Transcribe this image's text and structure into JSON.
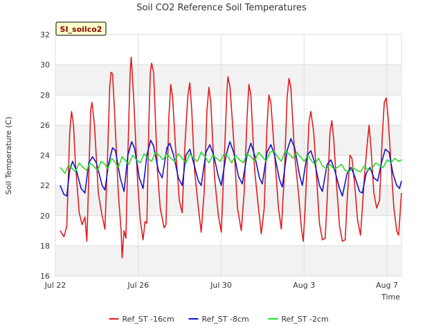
{
  "chart_data": {
    "type": "line",
    "title": "Soil CO2 Reference Soil Temperatures",
    "badge": "SI_soilco2",
    "xlabel": "Time",
    "ylabel": "Soil Temperature (C)",
    "ylim": [
      16,
      32
    ],
    "yticks": [
      16,
      18,
      20,
      22,
      24,
      26,
      28,
      30,
      32
    ],
    "xlim": [
      0,
      16.7
    ],
    "xticks": [
      {
        "value": 0,
        "label": "Jul 22"
      },
      {
        "value": 4,
        "label": "Jul 26"
      },
      {
        "value": 8,
        "label": "Jul 30"
      },
      {
        "value": 12,
        "label": "Aug 3"
      },
      {
        "value": 16,
        "label": "Aug 7"
      }
    ],
    "grid": true,
    "legend_position": "bottom",
    "series": [
      {
        "name": "Ref_ST -16cm",
        "color": "#e31a1c",
        "points": [
          [
            0.25,
            19.0
          ],
          [
            0.45,
            18.6
          ],
          [
            0.6,
            19.3
          ],
          [
            0.75,
            25.5
          ],
          [
            0.85,
            26.9
          ],
          [
            0.95,
            26.0
          ],
          [
            1.05,
            23.5
          ],
          [
            1.25,
            20.2
          ],
          [
            1.4,
            19.4
          ],
          [
            1.55,
            19.9
          ],
          [
            1.65,
            18.3
          ],
          [
            1.75,
            22.5
          ],
          [
            1.85,
            27.0
          ],
          [
            1.92,
            27.5
          ],
          [
            2.05,
            26.0
          ],
          [
            2.25,
            21.5
          ],
          [
            2.45,
            20.0
          ],
          [
            2.6,
            19.1
          ],
          [
            2.75,
            24.5
          ],
          [
            2.85,
            28.5
          ],
          [
            2.92,
            29.5
          ],
          [
            3.0,
            29.4
          ],
          [
            3.1,
            27.0
          ],
          [
            3.3,
            21.5
          ],
          [
            3.45,
            19.0
          ],
          [
            3.5,
            17.2
          ],
          [
            3.6,
            19.0
          ],
          [
            3.7,
            18.5
          ],
          [
            3.8,
            24.0
          ],
          [
            3.92,
            29.5
          ],
          [
            3.98,
            30.5
          ],
          [
            4.1,
            28.0
          ],
          [
            4.3,
            22.5
          ],
          [
            4.45,
            19.7
          ],
          [
            4.6,
            18.4
          ],
          [
            4.7,
            19.6
          ],
          [
            4.8,
            19.5
          ],
          [
            4.9,
            26.0
          ],
          [
            4.98,
            29.5
          ],
          [
            5.05,
            30.1
          ],
          [
            5.15,
            29.5
          ],
          [
            5.35,
            23.0
          ],
          [
            5.5,
            20.5
          ],
          [
            5.7,
            19.2
          ],
          [
            5.8,
            19.4
          ],
          [
            5.95,
            26.5
          ],
          [
            6.05,
            28.7
          ],
          [
            6.15,
            27.8
          ],
          [
            6.3,
            24.5
          ],
          [
            6.5,
            21.0
          ],
          [
            6.65,
            20.2
          ],
          [
            6.8,
            24.8
          ],
          [
            6.95,
            28.0
          ],
          [
            7.05,
            28.8
          ],
          [
            7.15,
            27.0
          ],
          [
            7.3,
            23.0
          ],
          [
            7.5,
            20.5
          ],
          [
            7.65,
            18.9
          ],
          [
            7.8,
            21.5
          ],
          [
            7.95,
            27.0
          ],
          [
            8.05,
            28.5
          ],
          [
            8.15,
            27.5
          ],
          [
            8.35,
            22.5
          ],
          [
            8.55,
            20.0
          ],
          [
            8.7,
            18.9
          ],
          [
            8.85,
            23.5
          ],
          [
            9.0,
            28.3
          ],
          [
            9.05,
            29.2
          ],
          [
            9.15,
            28.6
          ],
          [
            9.35,
            25.0
          ],
          [
            9.55,
            20.5
          ],
          [
            9.75,
            19.0
          ],
          [
            9.9,
            21.5
          ],
          [
            10.05,
            26.5
          ],
          [
            10.15,
            28.7
          ],
          [
            10.25,
            28.0
          ],
          [
            10.45,
            23.0
          ],
          [
            10.65,
            20.5
          ],
          [
            10.8,
            18.8
          ],
          [
            10.95,
            20.5
          ],
          [
            11.1,
            26.0
          ],
          [
            11.2,
            28.0
          ],
          [
            11.3,
            27.5
          ],
          [
            11.5,
            24.0
          ],
          [
            11.7,
            20.5
          ],
          [
            11.85,
            19.1
          ],
          [
            12.0,
            22.5
          ],
          [
            12.15,
            27.8
          ],
          [
            12.25,
            29.1
          ],
          [
            12.35,
            28.5
          ],
          [
            12.55,
            24.0
          ],
          [
            12.75,
            21.5
          ],
          [
            12.9,
            19.2
          ],
          [
            13.0,
            18.3
          ],
          [
            13.1,
            20.5
          ],
          [
            13.3,
            26.2
          ],
          [
            13.4,
            26.9
          ],
          [
            13.55,
            25.5
          ],
          [
            13.7,
            22.5
          ],
          [
            13.85,
            19.5
          ],
          [
            14.0,
            18.4
          ],
          [
            14.15,
            18.5
          ],
          [
            14.25,
            21.0
          ],
          [
            14.4,
            25.5
          ],
          [
            14.5,
            26.3
          ],
          [
            14.6,
            25.0
          ],
          [
            14.75,
            22.0
          ],
          [
            14.9,
            19.3
          ],
          [
            15.05,
            18.3
          ],
          [
            15.2,
            18.4
          ],
          [
            15.3,
            21.0
          ],
          [
            15.45,
            24.0
          ],
          [
            15.55,
            23.8
          ],
          [
            15.7,
            22.0
          ],
          [
            15.85,
            19.7
          ],
          [
            16.0,
            18.7
          ],
          [
            16.1,
            20.5
          ],
          [
            16.2,
            22.5
          ],
          [
            16.35,
            24.7
          ],
          [
            16.45,
            26.0
          ],
          [
            16.55,
            24.5
          ],
          [
            16.7,
            21.5
          ],
          [
            16.85,
            20.5
          ],
          [
            17.0,
            21.0
          ],
          [
            17.15,
            25.5
          ],
          [
            17.25,
            27.5
          ],
          [
            17.35,
            27.8
          ],
          [
            17.45,
            26.5
          ],
          [
            17.6,
            23.5
          ],
          [
            17.75,
            20.5
          ],
          [
            17.9,
            19.0
          ],
          [
            18.0,
            18.7
          ],
          [
            18.15,
            21.5
          ]
        ]
      },
      {
        "name": "Ref_ST -8cm",
        "color": "#1111cc",
        "points": [
          [
            0.25,
            22.0
          ],
          [
            0.45,
            21.4
          ],
          [
            0.6,
            21.3
          ],
          [
            0.75,
            23.0
          ],
          [
            0.9,
            23.6
          ],
          [
            1.1,
            23.0
          ],
          [
            1.35,
            21.8
          ],
          [
            1.55,
            21.5
          ],
          [
            1.75,
            23.5
          ],
          [
            1.95,
            23.9
          ],
          [
            2.15,
            23.5
          ],
          [
            2.45,
            22.0
          ],
          [
            2.6,
            21.7
          ],
          [
            2.8,
            23.5
          ],
          [
            3.0,
            24.5
          ],
          [
            3.15,
            24.3
          ],
          [
            3.4,
            22.5
          ],
          [
            3.6,
            21.6
          ],
          [
            3.8,
            24.0
          ],
          [
            4.0,
            24.9
          ],
          [
            4.15,
            24.5
          ],
          [
            4.4,
            22.5
          ],
          [
            4.6,
            21.8
          ],
          [
            4.8,
            24.0
          ],
          [
            5.0,
            25.0
          ],
          [
            5.15,
            24.6
          ],
          [
            5.4,
            23.0
          ],
          [
            5.6,
            22.5
          ],
          [
            5.85,
            24.5
          ],
          [
            6.0,
            24.8
          ],
          [
            6.2,
            24.0
          ],
          [
            6.45,
            22.5
          ],
          [
            6.65,
            22.0
          ],
          [
            6.85,
            24.0
          ],
          [
            7.05,
            24.4
          ],
          [
            7.25,
            23.5
          ],
          [
            7.5,
            22.3
          ],
          [
            7.65,
            22.0
          ],
          [
            7.9,
            24.2
          ],
          [
            8.1,
            24.7
          ],
          [
            8.3,
            24.0
          ],
          [
            8.55,
            22.6
          ],
          [
            8.7,
            22.0
          ],
          [
            8.95,
            24.0
          ],
          [
            9.15,
            24.9
          ],
          [
            9.35,
            24.2
          ],
          [
            9.6,
            22.6
          ],
          [
            9.8,
            22.1
          ],
          [
            10.05,
            24.0
          ],
          [
            10.25,
            24.8
          ],
          [
            10.45,
            24.0
          ],
          [
            10.7,
            22.5
          ],
          [
            10.85,
            22.1
          ],
          [
            11.1,
            24.2
          ],
          [
            11.3,
            24.7
          ],
          [
            11.5,
            24.0
          ],
          [
            11.75,
            22.4
          ],
          [
            11.9,
            21.9
          ],
          [
            12.15,
            24.3
          ],
          [
            12.35,
            25.1
          ],
          [
            12.55,
            24.5
          ],
          [
            12.8,
            22.7
          ],
          [
            12.95,
            22.0
          ],
          [
            13.2,
            24.0
          ],
          [
            13.4,
            24.3
          ],
          [
            13.6,
            23.5
          ],
          [
            13.85,
            22.0
          ],
          [
            14.0,
            21.6
          ],
          [
            14.25,
            23.4
          ],
          [
            14.45,
            23.7
          ],
          [
            14.65,
            23.0
          ],
          [
            14.9,
            21.8
          ],
          [
            15.05,
            21.3
          ],
          [
            15.3,
            22.8
          ],
          [
            15.5,
            23.2
          ],
          [
            15.7,
            22.6
          ],
          [
            15.95,
            21.6
          ],
          [
            16.1,
            21.5
          ],
          [
            16.3,
            22.8
          ],
          [
            16.5,
            23.2
          ],
          [
            16.7,
            22.5
          ],
          [
            16.9,
            22.3
          ],
          [
            17.1,
            23.5
          ],
          [
            17.3,
            24.4
          ],
          [
            17.5,
            24.2
          ],
          [
            17.7,
            22.8
          ],
          [
            17.9,
            22.0
          ],
          [
            18.05,
            21.8
          ],
          [
            18.15,
            22.3
          ]
        ]
      },
      {
        "name": "Ref_ST -2cm",
        "color": "#22dd22",
        "points": [
          [
            0.25,
            23.2
          ],
          [
            0.5,
            22.8
          ],
          [
            0.7,
            23.4
          ],
          [
            0.9,
            23.1
          ],
          [
            1.05,
            22.9
          ],
          [
            1.25,
            23.5
          ],
          [
            1.45,
            23.2
          ],
          [
            1.65,
            23.0
          ],
          [
            1.8,
            23.5
          ],
          [
            2.0,
            23.3
          ],
          [
            2.2,
            23.0
          ],
          [
            2.4,
            23.6
          ],
          [
            2.6,
            23.4
          ],
          [
            2.75,
            23.1
          ],
          [
            2.95,
            23.8
          ],
          [
            3.15,
            23.5
          ],
          [
            3.3,
            23.2
          ],
          [
            3.5,
            23.9
          ],
          [
            3.7,
            23.6
          ],
          [
            3.85,
            23.4
          ],
          [
            4.05,
            24.0
          ],
          [
            4.25,
            23.7
          ],
          [
            4.45,
            23.5
          ],
          [
            4.65,
            24.1
          ],
          [
            4.85,
            23.8
          ],
          [
            5.05,
            23.6
          ],
          [
            5.25,
            24.2
          ],
          [
            5.45,
            24.0
          ],
          [
            5.65,
            23.7
          ],
          [
            5.85,
            24.1
          ],
          [
            6.05,
            23.8
          ],
          [
            6.25,
            23.6
          ],
          [
            6.45,
            24.1
          ],
          [
            6.65,
            23.8
          ],
          [
            6.85,
            23.5
          ],
          [
            7.05,
            24.1
          ],
          [
            7.25,
            23.8
          ],
          [
            7.45,
            23.6
          ],
          [
            7.65,
            24.2
          ],
          [
            7.85,
            23.9
          ],
          [
            8.05,
            23.5
          ],
          [
            8.25,
            24.0
          ],
          [
            8.45,
            23.8
          ],
          [
            8.65,
            23.6
          ],
          [
            8.85,
            24.1
          ],
          [
            9.05,
            23.9
          ],
          [
            9.25,
            23.5
          ],
          [
            9.45,
            24.0
          ],
          [
            9.65,
            23.7
          ],
          [
            9.85,
            23.5
          ],
          [
            10.05,
            24.1
          ],
          [
            10.25,
            23.9
          ],
          [
            10.45,
            23.6
          ],
          [
            10.65,
            24.2
          ],
          [
            10.85,
            23.9
          ],
          [
            11.05,
            23.6
          ],
          [
            11.25,
            24.2
          ],
          [
            11.45,
            24.3
          ],
          [
            11.65,
            23.9
          ],
          [
            11.85,
            23.6
          ],
          [
            12.05,
            24.3
          ],
          [
            12.25,
            24.1
          ],
          [
            12.45,
            23.8
          ],
          [
            12.65,
            24.2
          ],
          [
            12.85,
            23.9
          ],
          [
            13.05,
            23.6
          ],
          [
            13.25,
            24.0
          ],
          [
            13.45,
            23.6
          ],
          [
            13.6,
            23.4
          ],
          [
            13.8,
            23.8
          ],
          [
            14.0,
            23.3
          ],
          [
            14.2,
            23.1
          ],
          [
            14.4,
            23.4
          ],
          [
            14.6,
            23.1
          ],
          [
            14.8,
            23.2
          ],
          [
            15.0,
            23.4
          ],
          [
            15.2,
            23.0
          ],
          [
            15.4,
            22.9
          ],
          [
            15.6,
            23.2
          ],
          [
            15.8,
            23.0
          ],
          [
            16.0,
            22.9
          ],
          [
            16.2,
            23.3
          ],
          [
            16.4,
            23.0
          ],
          [
            16.6,
            23.1
          ],
          [
            16.8,
            23.5
          ],
          [
            17.0,
            23.3
          ],
          [
            17.2,
            23.2
          ],
          [
            17.4,
            23.7
          ],
          [
            17.6,
            23.5
          ],
          [
            17.8,
            23.8
          ],
          [
            18.0,
            23.6
          ],
          [
            18.15,
            23.7
          ]
        ]
      }
    ]
  }
}
